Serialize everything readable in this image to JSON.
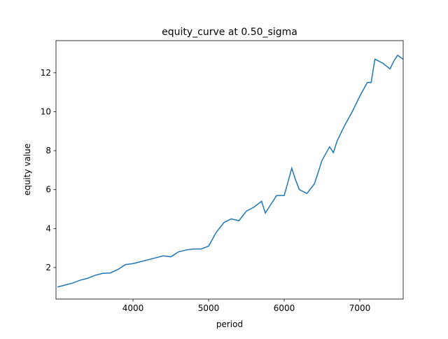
{
  "chart_data": {
    "type": "line",
    "title": "equity_curve at 0.50_sigma",
    "x_label": "period",
    "y_label": "equity value",
    "x": [
      3000,
      3100,
      3200,
      3300,
      3400,
      3500,
      3600,
      3700,
      3800,
      3900,
      4000,
      4100,
      4200,
      4300,
      4400,
      4500,
      4600,
      4700,
      4800,
      4900,
      5000,
      5100,
      5200,
      5300,
      5400,
      5500,
      5600,
      5700,
      5750,
      5800,
      5900,
      6000,
      6100,
      6150,
      6200,
      6300,
      6400,
      6500,
      6600,
      6650,
      6700,
      6800,
      6900,
      7000,
      7100,
      7150,
      7200,
      7300,
      7400,
      7450,
      7500,
      7570
    ],
    "series": [
      {
        "color": "#1f77b4",
        "values": [
          1.0,
          1.1,
          1.2,
          1.35,
          1.45,
          1.6,
          1.7,
          1.72,
          1.9,
          2.15,
          2.2,
          2.3,
          2.4,
          2.5,
          2.6,
          2.55,
          2.8,
          2.9,
          2.95,
          2.95,
          3.1,
          3.8,
          4.3,
          4.5,
          4.4,
          4.9,
          5.1,
          5.4,
          4.8,
          5.1,
          5.7,
          5.7,
          7.1,
          6.5,
          6.0,
          5.8,
          6.3,
          7.5,
          8.2,
          7.9,
          8.5,
          9.3,
          10.0,
          10.8,
          11.5,
          11.5,
          12.7,
          12.5,
          12.2,
          12.6,
          12.9,
          12.7
        ]
      }
    ],
    "xlim": [
      2981,
      7574
    ],
    "ylim": [
      0.38,
      13.65
    ],
    "xticks": [
      4000,
      5000,
      6000,
      7000
    ],
    "yticks": [
      2,
      4,
      6,
      8,
      10,
      12
    ]
  }
}
